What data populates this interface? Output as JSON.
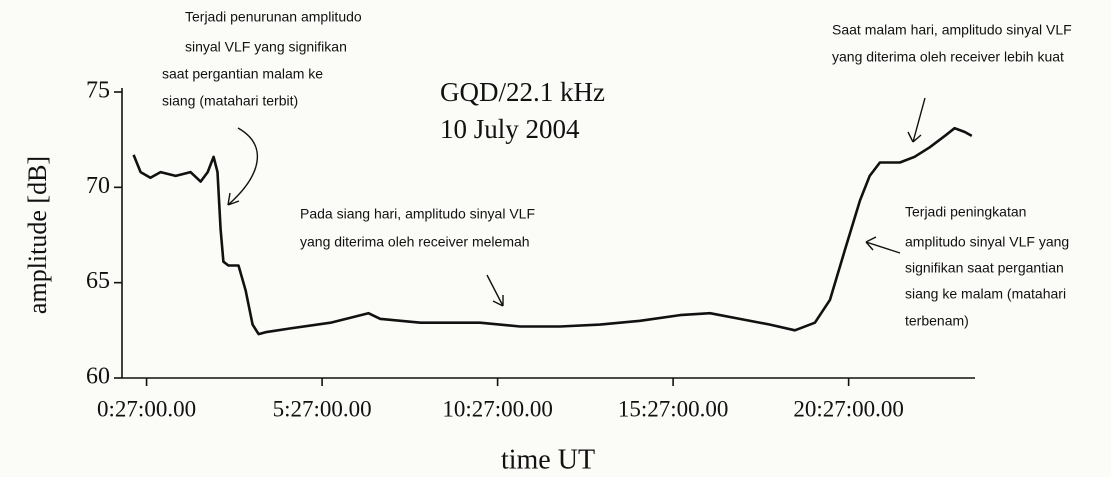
{
  "chart_data": {
    "type": "line",
    "title": [
      "GQD/22.1 kHz",
      "10 July 2004"
    ],
    "xlabel": "time UT",
    "ylabel": "amplitude [dB]",
    "color": "#111111",
    "xlim": [
      -0.25,
      24.05
    ],
    "ylim": [
      60,
      75
    ],
    "yticks": [
      60,
      65,
      70,
      75
    ],
    "xticks": [
      {
        "value": 0.45,
        "label": "0:27:00.00"
      },
      {
        "value": 5.45,
        "label": "5:27:00.00"
      },
      {
        "value": 10.45,
        "label": "10:27:00.00"
      },
      {
        "value": 15.45,
        "label": "15:27:00.00"
      },
      {
        "value": 20.45,
        "label": "20:27:00.00"
      }
    ],
    "x": [
      0.08,
      0.28,
      0.56,
      0.85,
      1.28,
      1.7,
      1.99,
      2.19,
      2.36,
      2.47,
      2.56,
      2.64,
      2.78,
      3.07,
      3.27,
      3.47,
      3.64,
      3.84,
      4.55,
      5.69,
      6.77,
      7.11,
      8.25,
      9.95,
      11.09,
      12.23,
      13.37,
      14.51,
      15.65,
      16.5,
      17.35,
      18.21,
      18.92,
      19.49,
      19.92,
      20.34,
      20.77,
      21.05,
      21.34,
      21.91,
      22.33,
      22.76,
      23.19,
      23.47,
      23.76,
      23.96
    ],
    "values": [
      71.7,
      70.8,
      70.5,
      70.8,
      70.6,
      70.8,
      70.3,
      70.8,
      71.6,
      70.8,
      67.8,
      66.1,
      65.9,
      65.9,
      64.6,
      62.8,
      62.3,
      62.4,
      62.6,
      62.9,
      63.4,
      63.1,
      62.9,
      62.9,
      62.7,
      62.7,
      62.8,
      63.0,
      63.3,
      63.4,
      63.1,
      62.8,
      62.5,
      62.9,
      64.1,
      66.7,
      69.3,
      70.6,
      71.3,
      71.3,
      71.6,
      72.1,
      72.7,
      73.1,
      72.9,
      72.7
    ],
    "annotations": [
      {
        "lines": [
          "Terjadi penurunan amplitudo",
          "sinyal VLF yang signifikan",
          "saat pergantian malam ke",
          "siang (matahari terbit)"
        ]
      },
      {
        "lines": [
          "Pada siang hari, amplitudo sinyal VLF",
          "yang diterima oleh receiver melemah"
        ]
      },
      {
        "lines": [
          "Saat malam hari, amplitudo sinyal VLF",
          "yang diterima oleh receiver lebih kuat"
        ]
      },
      {
        "lines": [
          "Terjadi peningkatan",
          "amplitudo sinyal VLF yang",
          "signifikan saat pergantian",
          "siang ke malam (matahari",
          "terbenam)"
        ]
      }
    ]
  }
}
